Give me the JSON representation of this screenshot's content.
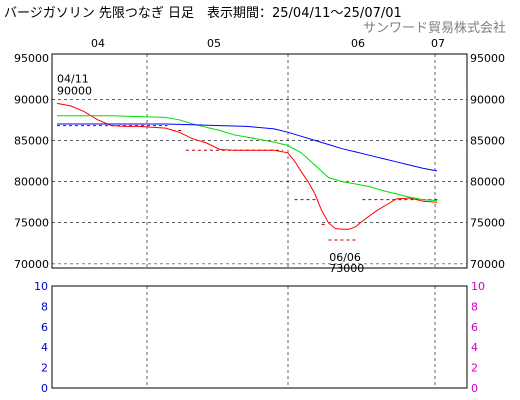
{
  "header": {
    "title": "バージガソリン 先限つなぎ 日足　表示期間：25/04/11～25/07/01",
    "company": "サンワード貿易株式会社"
  },
  "colors": {
    "price": "#ff0000",
    "ma_short": "#00dd00",
    "ma_long": "#0000ff",
    "sar": "#aa0000",
    "sub_left_axis": "#0000cc",
    "sub_right_axis": "#cc00cc"
  },
  "chart_data": [
    {
      "type": "line",
      "x_ticks": [
        "04",
        "05",
        "06",
        "07"
      ],
      "y_ticks": [
        "95000",
        "90000",
        "85000",
        "80000",
        "75000",
        "70000"
      ],
      "ylim": [
        69500,
        95500
      ],
      "x_index_range": [
        0,
        56
      ],
      "x_tick_index": [
        3,
        17,
        44,
        56
      ],
      "series": [
        {
          "color_key": "price",
          "x": [
            0,
            2,
            4,
            6,
            8,
            10,
            12,
            14,
            16,
            18,
            20,
            22,
            24,
            26,
            28,
            30,
            32,
            34,
            35,
            36,
            37,
            38,
            39,
            40,
            41,
            42,
            43,
            44,
            45,
            46,
            47,
            48,
            49,
            50,
            52,
            54,
            56
          ],
          "values": [
            89500,
            89200,
            88500,
            87500,
            86800,
            86700,
            86700,
            86600,
            86500,
            86000,
            85200,
            84700,
            83900,
            83800,
            83800,
            83800,
            83800,
            83500,
            82500,
            81200,
            80000,
            78500,
            76500,
            75000,
            74300,
            74200,
            74200,
            74500,
            75200,
            75800,
            76400,
            76900,
            77400,
            77900,
            78000,
            77600,
            77500
          ]
        },
        {
          "color_key": "ma_short",
          "x": [
            0,
            4,
            8,
            12,
            16,
            18,
            20,
            22,
            24,
            26,
            28,
            30,
            32,
            34,
            36,
            38,
            40,
            42,
            44,
            46,
            48,
            50,
            52,
            54,
            56
          ],
          "values": [
            88000,
            88000,
            88000,
            87900,
            87800,
            87500,
            87000,
            86600,
            86200,
            85700,
            85400,
            85100,
            84800,
            84400,
            83500,
            82000,
            80500,
            80000,
            79700,
            79400,
            78900,
            78500,
            78100,
            77800,
            77700
          ]
        },
        {
          "color_key": "ma_long",
          "x": [
            0,
            4,
            8,
            12,
            16,
            20,
            24,
            28,
            32,
            34,
            36,
            38,
            40,
            42,
            44,
            46,
            48,
            50,
            52,
            54,
            56
          ],
          "values": [
            87000,
            87000,
            87000,
            87000,
            87000,
            86900,
            86800,
            86700,
            86400,
            86000,
            85500,
            85000,
            84500,
            84000,
            83600,
            83200,
            82800,
            82400,
            82000,
            81600,
            81300
          ]
        }
      ],
      "sar_segments": [
        {
          "x_from": 0,
          "x_to": 16,
          "value": 86800
        },
        {
          "x_from": 17,
          "x_to": 18,
          "value": 86200
        },
        {
          "x_from": 19,
          "x_to": 33,
          "value": 83800
        },
        {
          "x_from": 35,
          "x_to": 38,
          "value": 77800
        },
        {
          "x_from": 39,
          "x_to": 39.5,
          "value": 74800
        },
        {
          "x_from": 40,
          "x_to": 44,
          "value": 72900
        },
        {
          "x_from": 45,
          "x_to": 56,
          "value": 77800
        }
      ],
      "annotations": [
        {
          "date": "04/11",
          "price": "90000",
          "x": 0,
          "value": 90000,
          "position": "above"
        },
        {
          "date": "06/06",
          "price": "73000",
          "x": 41,
          "value": 73000,
          "position": "below"
        }
      ]
    },
    {
      "type": "line",
      "left_ticks": [
        "10",
        "8",
        "6",
        "4",
        "2",
        "0"
      ],
      "right_ticks": [
        "10",
        "8",
        "6",
        "4",
        "2",
        "0"
      ],
      "ylim": [
        0,
        10
      ],
      "series": []
    }
  ]
}
